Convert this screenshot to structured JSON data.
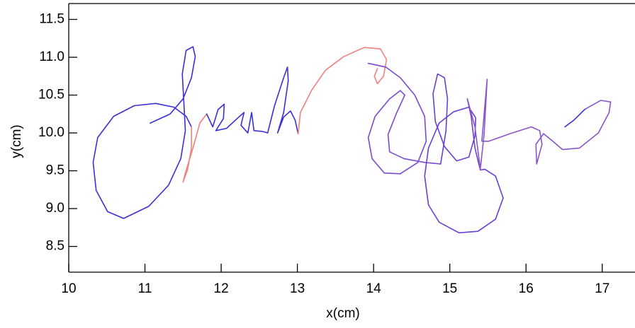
{
  "chart_data": {
    "type": "line",
    "xlabel": "x(cm)",
    "ylabel": "y(cm)",
    "xlim": [
      10,
      17.43
    ],
    "ylim": [
      8.16,
      11.71
    ],
    "xticks": [
      10,
      11,
      12,
      13,
      14,
      15,
      16,
      17
    ],
    "yticks": [
      8.5,
      {
        "value": 9,
        "label": "9.0"
      },
      9.5,
      {
        "value": 10,
        "label": "10.0"
      },
      10.5,
      {
        "value": 11,
        "label": "11.0"
      },
      11.5
    ],
    "series": [
      {
        "color": "#3b2fd6",
        "x": [
          11.07,
          11.33,
          11.5,
          11.61,
          11.66,
          11.63,
          11.54,
          11.49,
          11.51,
          11.53,
          11.47,
          11.31,
          11.05,
          10.72,
          10.51,
          10.36,
          10.32,
          10.38,
          10.59,
          10.86,
          11.14,
          11.38,
          11.54,
          11.61
        ],
        "values": [
          10.13,
          10.25,
          10.45,
          10.73,
          11.01,
          11.14,
          11.09,
          10.78,
          10.41,
          10.03,
          9.66,
          9.31,
          9.03,
          8.87,
          8.96,
          9.24,
          9.61,
          9.94,
          10.22,
          10.36,
          10.39,
          10.34,
          10.22,
          10.08
        ]
      },
      {
        "color": "#f08080",
        "x": [
          11.61,
          11.61,
          11.56,
          11.5,
          11.53,
          11.63,
          11.72,
          11.81
        ],
        "values": [
          10.08,
          9.8,
          9.52,
          9.35,
          9.47,
          9.8,
          10.13,
          10.25
        ]
      },
      {
        "color": "#3b2fd6",
        "x": [
          11.81,
          11.89,
          11.96,
          12.04,
          12.03,
          11.93,
          12.07,
          12.21,
          12.3,
          12.26,
          12.35,
          12.4,
          12.43,
          12.54,
          12.61,
          12.7,
          12.82,
          12.87,
          12.88,
          12.82,
          12.74,
          12.82,
          12.91,
          12.97,
          13.01
        ],
        "values": [
          10.25,
          10.08,
          10.31,
          10.38,
          10.19,
          10.03,
          10.06,
          10.19,
          10.27,
          10.1,
          10.0,
          10.27,
          10.03,
          10.02,
          10.0,
          10.36,
          10.73,
          10.87,
          10.69,
          10.27,
          10.0,
          10.21,
          10.29,
          10.17,
          9.99
        ]
      },
      {
        "color": "#f08080",
        "x": [
          13.01,
          13.04,
          13.19,
          13.37,
          13.61,
          13.88,
          14.09,
          14.17,
          14.13,
          14.05,
          14.01,
          14.05
        ],
        "values": [
          9.99,
          10.27,
          10.57,
          10.83,
          11.01,
          11.13,
          11.11,
          10.97,
          10.75,
          10.65,
          10.75,
          10.85
        ]
      },
      {
        "color": "#7a4ad0",
        "x": [
          13.93,
          14.16,
          14.35,
          14.54,
          14.67,
          14.69,
          14.58,
          14.35,
          14.14,
          13.98,
          13.93,
          14.02,
          14.21,
          14.35,
          14.41,
          14.3,
          14.19,
          14.21,
          14.4,
          14.67,
          14.88
        ],
        "values": [
          10.92,
          10.87,
          10.73,
          10.5,
          10.22,
          9.89,
          9.61,
          9.46,
          9.47,
          9.66,
          9.94,
          10.22,
          10.45,
          10.56,
          10.5,
          10.26,
          9.98,
          9.75,
          9.66,
          9.61,
          9.59
        ]
      },
      {
        "color": "#6a3fd6",
        "x": [
          14.88,
          14.95,
          14.97,
          14.93,
          14.84,
          14.78,
          14.81,
          14.93,
          15.09,
          15.25,
          15.33,
          15.34,
          15.25,
          15.05,
          14.86,
          14.72,
          14.67,
          14.72,
          14.86,
          15.12,
          15.37,
          15.6,
          15.7,
          15.6,
          15.46,
          15.4,
          15.33,
          15.28,
          15.23
        ],
        "values": [
          9.59,
          10.03,
          10.45,
          10.73,
          10.78,
          10.52,
          10.15,
          9.82,
          9.63,
          9.68,
          9.96,
          10.2,
          10.34,
          10.28,
          10.13,
          9.8,
          9.43,
          9.05,
          8.82,
          8.68,
          8.7,
          8.86,
          9.14,
          9.43,
          9.52,
          9.51,
          9.8,
          10.22,
          10.45
        ]
      },
      {
        "color": "#8a55c8",
        "x": [
          15.23,
          15.33,
          15.4,
          15.45,
          15.49,
          15.46,
          15.42,
          15.51,
          15.79,
          16.07,
          16.18,
          16.21,
          16.14,
          16.13,
          16.23,
          16.34,
          16.48,
          16.7,
          16.95,
          17.09,
          17.11,
          16.98,
          16.77
        ],
        "values": [
          10.45,
          10.08,
          9.52,
          9.98,
          10.71,
          10.36,
          9.89,
          9.89,
          9.99,
          10.08,
          10.03,
          9.85,
          9.59,
          9.85,
          9.99,
          9.9,
          9.78,
          9.8,
          10.0,
          10.27,
          10.41,
          10.43,
          10.31
        ]
      },
      {
        "color": "#3b2fd6",
        "x": [
          16.77,
          16.63,
          16.51
        ],
        "values": [
          10.31,
          10.17,
          10.08
        ]
      }
    ]
  }
}
